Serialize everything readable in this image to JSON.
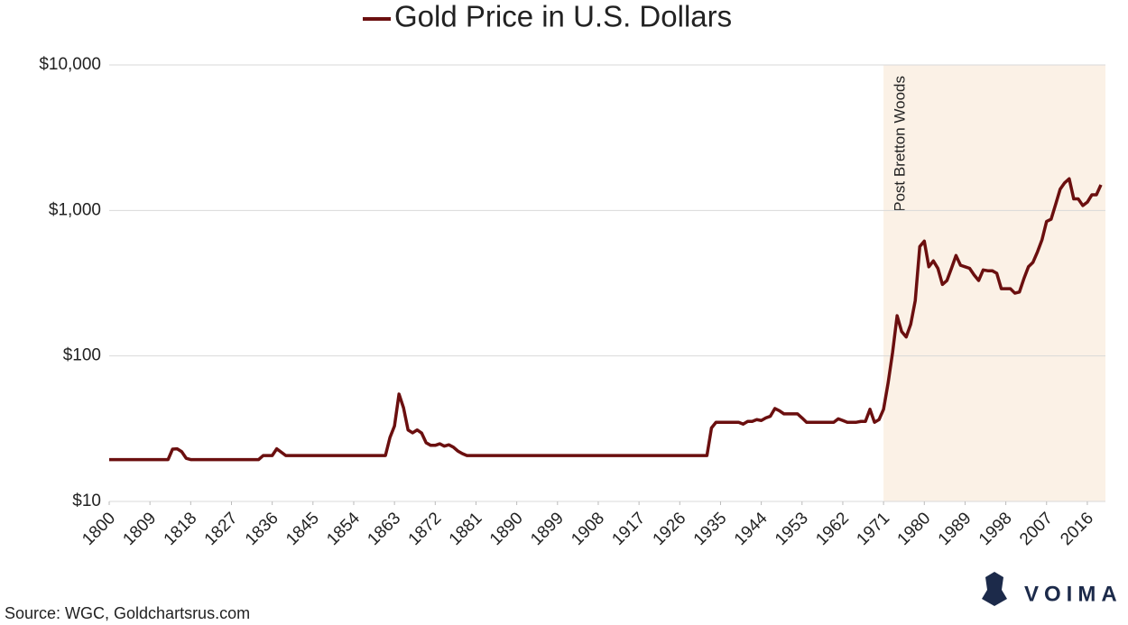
{
  "chart_data": {
    "type": "line",
    "series": [
      {
        "name": "Gold Price in U.S. Dollars",
        "color": "#6b0f0f",
        "x": [
          1800,
          1813,
          1814,
          1815,
          1816,
          1817,
          1818,
          1833,
          1834,
          1836,
          1837,
          1839,
          1861,
          1862,
          1863,
          1864,
          1865,
          1866,
          1867,
          1868,
          1869,
          1870,
          1871,
          1872,
          1873,
          1874,
          1875,
          1876,
          1877,
          1878,
          1879,
          1932,
          1933,
          1934,
          1939,
          1940,
          1941,
          1942,
          1943,
          1944,
          1945,
          1946,
          1947,
          1948,
          1949,
          1952,
          1953,
          1954,
          1960,
          1961,
          1962,
          1963,
          1965,
          1966,
          1967,
          1968,
          1969,
          1970,
          1971,
          1972,
          1973,
          1974,
          1975,
          1976,
          1977,
          1978,
          1979,
          1980,
          1981,
          1982,
          1983,
          1984,
          1985,
          1986,
          1987,
          1988,
          1989,
          1990,
          1991,
          1992,
          1993,
          1994,
          1995,
          1996,
          1997,
          1998,
          1999,
          2000,
          2001,
          2002,
          2003,
          2004,
          2005,
          2006,
          2007,
          2008,
          2009,
          2010,
          2011,
          2012,
          2013,
          2014,
          2015,
          2016,
          2017,
          2018,
          2019
        ],
        "values": [
          19.39,
          19.39,
          22.9,
          23,
          22,
          19.8,
          19.39,
          19.39,
          20.67,
          20.67,
          23,
          20.67,
          20.67,
          27.5,
          33,
          54.7,
          44,
          31,
          29.6,
          31,
          29.5,
          25.3,
          24.3,
          24.3,
          24.9,
          24,
          24.5,
          23.6,
          22.2,
          21.3,
          20.67,
          20.67,
          32,
          35,
          35,
          34,
          35.5,
          35.5,
          36.5,
          36,
          37.5,
          38.5,
          43.5,
          42,
          40,
          40,
          37.5,
          35,
          35,
          37,
          36,
          35,
          35,
          35.5,
          35.5,
          43,
          35,
          36.5,
          43,
          65,
          106,
          189,
          147,
          135,
          165,
          240,
          565,
          615,
          410,
          450,
          400,
          310,
          330,
          400,
          490,
          420,
          410,
          400,
          360,
          330,
          390,
          385,
          385,
          370,
          290,
          290,
          290,
          270,
          275,
          340,
          410,
          440,
          520,
          630,
          840,
          870,
          1100,
          1400,
          1550,
          1650,
          1200,
          1200,
          1080,
          1140,
          1280,
          1280,
          1500
        ]
      }
    ],
    "xlim": [
      1800,
      2020
    ],
    "xticks": [
      1800,
      1809,
      1818,
      1827,
      1836,
      1845,
      1854,
      1863,
      1872,
      1881,
      1890,
      1899,
      1908,
      1917,
      1926,
      1935,
      1944,
      1953,
      1962,
      1971,
      1980,
      1989,
      1998,
      2007,
      2016
    ],
    "ylim": [
      10,
      10000
    ],
    "yticks": [
      {
        "value": 10,
        "label": "$10"
      },
      {
        "value": 100,
        "label": "$100"
      },
      {
        "value": 1000,
        "label": "$1,000"
      },
      {
        "value": 10000,
        "label": "$10,000"
      }
    ],
    "log_y": true,
    "grid": true,
    "shade": {
      "x": [
        1971,
        2020
      ],
      "label": "Post Bretton Woods",
      "color": "#fbf1e6"
    },
    "source": "Source: WGC, Goldchartsrus.com",
    "logo": "VOIMA"
  }
}
